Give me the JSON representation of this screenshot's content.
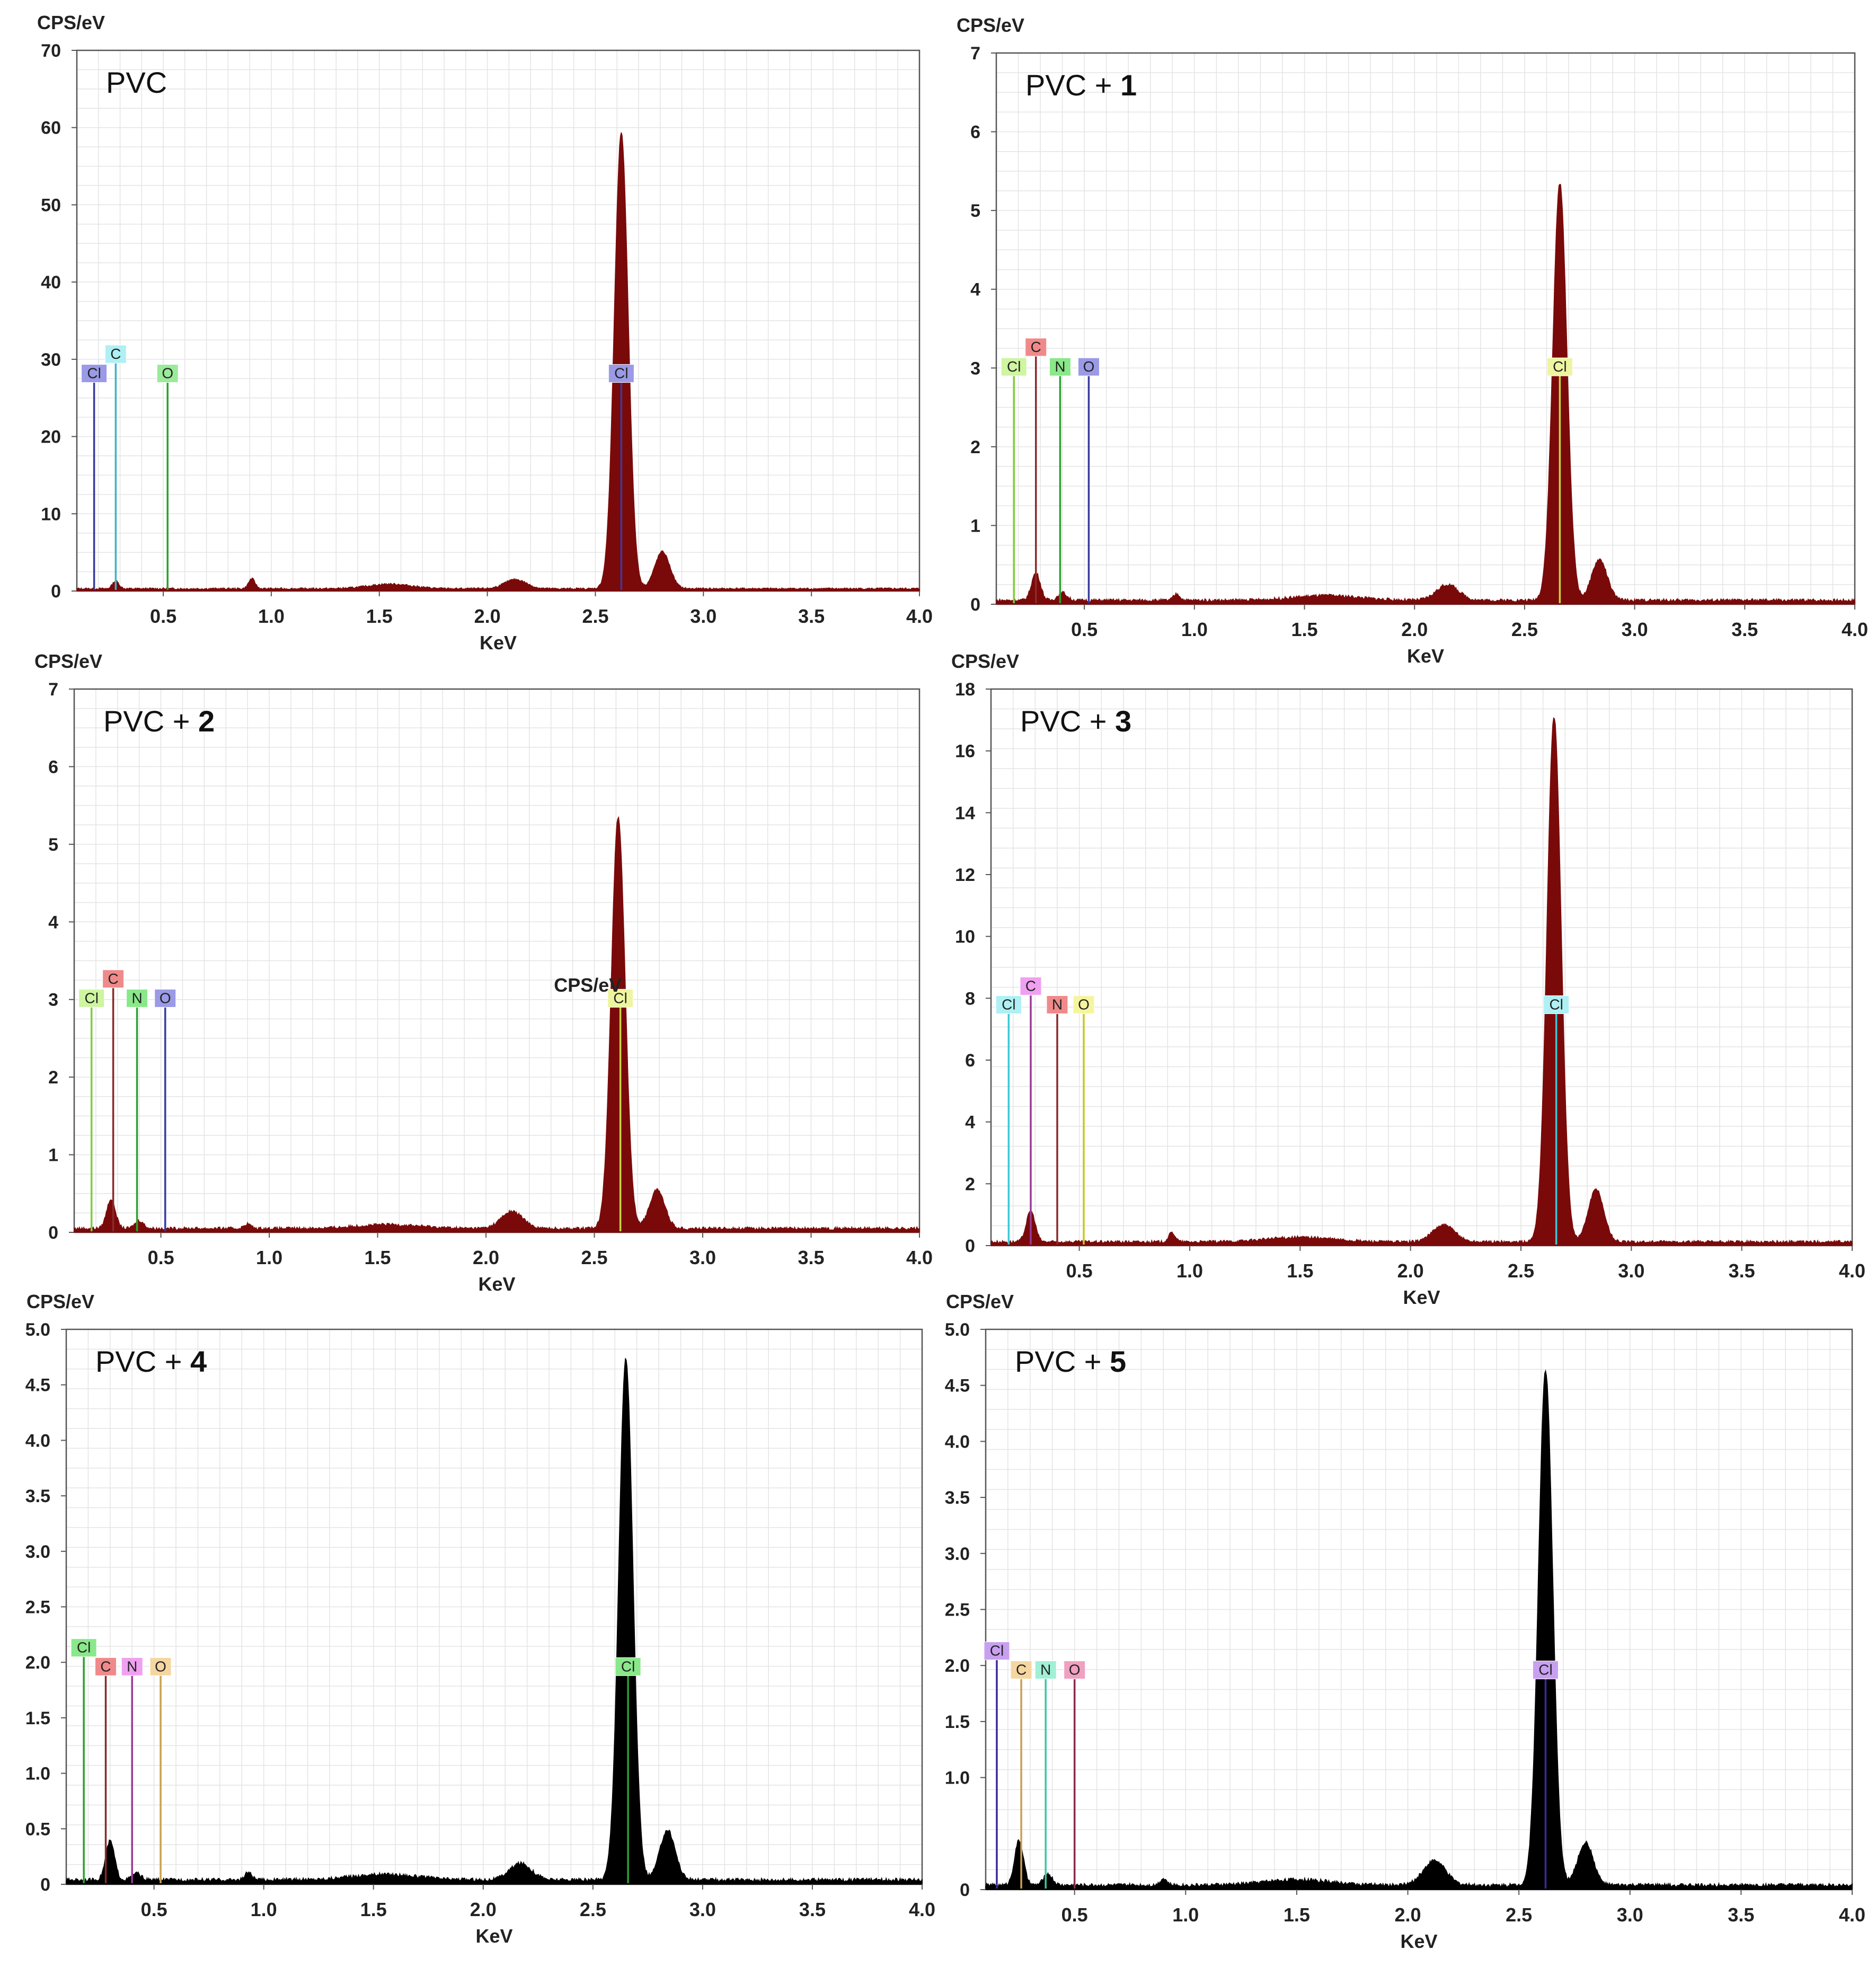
{
  "chart_data": [
    {
      "type": "area",
      "title": "PVC",
      "title_parts": [
        "PVC",
        ""
      ],
      "ylabel": "CPS/eV",
      "xlabel": "KeV",
      "fill_color": "#7a0a0a",
      "xlim": [
        0.1,
        4.0
      ],
      "ylim": [
        0,
        70
      ],
      "yticks": [
        0,
        10,
        20,
        30,
        40,
        50,
        60,
        70
      ],
      "ytick_labels": [
        "0",
        "10",
        "20",
        "30",
        "40",
        "50",
        "60",
        "70"
      ],
      "xticks": [
        0.5,
        1.0,
        1.5,
        2.0,
        2.5,
        3.0,
        3.5,
        4.0
      ],
      "xtick_labels": [
        "0.5",
        "1.0",
        "1.5",
        "2.0",
        "2.5",
        "3.0",
        "3.5",
        "4.0"
      ],
      "grid": true,
      "spectrum": {
        "baseline": 0.3,
        "peaks": [
          [
            0.28,
            1.0,
            0.015
          ],
          [
            0.91,
            1.3,
            0.015
          ],
          [
            1.55,
            0.6,
            0.1
          ],
          [
            2.13,
            1.2,
            0.05
          ],
          [
            2.62,
            59,
            0.032
          ],
          [
            2.81,
            4.8,
            0.035
          ]
        ]
      },
      "markers": [
        {
          "label": "Cl",
          "x": 0.18,
          "y": 27,
          "color": "#3a3aa0",
          "box_color": "#9a9ae6"
        },
        {
          "label": "C",
          "x": 0.28,
          "y": 29.5,
          "color": "#3ab5c8",
          "box_color": "#aef0f4"
        },
        {
          "label": "O",
          "x": 0.52,
          "y": 27,
          "color": "#2ea02e",
          "box_color": "#9aea9a"
        },
        {
          "label": "Cl",
          "x": 2.62,
          "y": 27,
          "color": "#3a3aa0",
          "box_color": "#9a9ae6"
        }
      ]
    },
    {
      "type": "area",
      "title": "PVC + 1",
      "title_parts": [
        "PVC + ",
        "1"
      ],
      "ylabel": "CPS/eV",
      "xlabel": "KeV",
      "fill_color": "#7a0a0a",
      "xlim": [
        0.1,
        4.0
      ],
      "ylim": [
        0,
        7
      ],
      "yticks": [
        0,
        1,
        2,
        3,
        4,
        5,
        6,
        7
      ],
      "ytick_labels": [
        "0",
        "1",
        "2",
        "3",
        "4",
        "5",
        "6",
        "7"
      ],
      "xticks": [
        0.5,
        1.0,
        1.5,
        2.0,
        2.5,
        3.0,
        3.5,
        4.0
      ],
      "xtick_labels": [
        "0.5",
        "1.0",
        "1.5",
        "2.0",
        "2.5",
        "3.0",
        "3.5",
        "4.0"
      ],
      "grid": true,
      "spectrum": {
        "baseline": 0.05,
        "peaks": [
          [
            0.28,
            0.35,
            0.02
          ],
          [
            0.4,
            0.1,
            0.02
          ],
          [
            0.92,
            0.08,
            0.015
          ],
          [
            1.6,
            0.06,
            0.15
          ],
          [
            2.15,
            0.2,
            0.05
          ],
          [
            2.66,
            5.3,
            0.032
          ],
          [
            2.84,
            0.52,
            0.035
          ]
        ]
      },
      "markers": [
        {
          "label": "Cl",
          "x": 0.18,
          "y": 2.9,
          "color": "#7ccf3a",
          "box_color": "#cef5a0"
        },
        {
          "label": "C",
          "x": 0.28,
          "y": 3.15,
          "color": "#8a2a2a",
          "box_color": "#f08a8a"
        },
        {
          "label": "N",
          "x": 0.39,
          "y": 2.9,
          "color": "#2ea02e",
          "box_color": "#8ae88a"
        },
        {
          "label": "O",
          "x": 0.52,
          "y": 2.9,
          "color": "#3a3aa0",
          "box_color": "#9a9ae6"
        },
        {
          "label": "Cl",
          "x": 2.66,
          "y": 2.9,
          "color": "#c8d640",
          "box_color": "#eef5a0"
        }
      ]
    },
    {
      "type": "area",
      "title": "PVC + 2",
      "title_parts": [
        "PVC + ",
        "2"
      ],
      "ylabel": "CPS/eV",
      "xlabel": "KeV",
      "fill_color": "#7a0a0a",
      "xlim": [
        0.1,
        4.0
      ],
      "ylim": [
        0,
        7
      ],
      "yticks": [
        0,
        1,
        2,
        3,
        4,
        5,
        6,
        7
      ],
      "ytick_labels": [
        "0",
        "1",
        "2",
        "3",
        "4",
        "5",
        "6",
        "7"
      ],
      "xticks": [
        0.5,
        1.0,
        1.5,
        2.0,
        2.5,
        3.0,
        3.5,
        4.0
      ],
      "xtick_labels": [
        "0.5",
        "1.0",
        "1.5",
        "2.0",
        "2.5",
        "3.0",
        "3.5",
        "4.0"
      ],
      "grid": true,
      "spectrum": {
        "baseline": 0.05,
        "peaks": [
          [
            0.27,
            0.38,
            0.02
          ],
          [
            0.4,
            0.1,
            0.02
          ],
          [
            0.9,
            0.06,
            0.015
          ],
          [
            1.55,
            0.05,
            0.15
          ],
          [
            2.12,
            0.22,
            0.05
          ],
          [
            2.61,
            5.3,
            0.032
          ],
          [
            2.79,
            0.5,
            0.035
          ]
        ]
      },
      "markers": [
        {
          "label": "Cl",
          "x": 0.18,
          "y": 2.9,
          "color": "#7ccf3a",
          "box_color": "#cef5a0"
        },
        {
          "label": "C",
          "x": 0.28,
          "y": 3.15,
          "color": "#8a2a2a",
          "box_color": "#f08a8a"
        },
        {
          "label": "N",
          "x": 0.39,
          "y": 2.9,
          "color": "#2ea02e",
          "box_color": "#8ae88a"
        },
        {
          "label": "O",
          "x": 0.52,
          "y": 2.9,
          "color": "#3a3aa0",
          "box_color": "#9a9ae6"
        },
        {
          "label": "Cl",
          "x": 2.62,
          "y": 2.9,
          "color": "#c8d640",
          "box_color": "#eef5a0"
        }
      ],
      "annotations": [
        {
          "text": "CPS/eV",
          "x": 2.47,
          "y": 3.1
        }
      ]
    },
    {
      "type": "area",
      "title": "PVC + 3",
      "title_parts": [
        "PVC + ",
        "3"
      ],
      "ylabel": "CPS/eV",
      "xlabel": "KeV",
      "fill_color": "#7a0a0a",
      "xlim": [
        0.1,
        4.0
      ],
      "ylim": [
        0,
        18
      ],
      "yticks": [
        0,
        2,
        4,
        6,
        8,
        10,
        12,
        14,
        16,
        18
      ],
      "ytick_labels": [
        "0",
        "2",
        "4",
        "6",
        "8",
        "10",
        "12",
        "14",
        "16",
        "18"
      ],
      "xticks": [
        0.5,
        1.0,
        1.5,
        2.0,
        2.5,
        3.0,
        3.5,
        4.0
      ],
      "xtick_labels": [
        "0.5",
        "1.0",
        "1.5",
        "2.0",
        "2.5",
        "3.0",
        "3.5",
        "4.0"
      ],
      "grid": true,
      "spectrum": {
        "baseline": 0.12,
        "peaks": [
          [
            0.28,
            1.0,
            0.02
          ],
          [
            0.92,
            0.3,
            0.015
          ],
          [
            1.5,
            0.15,
            0.15
          ],
          [
            2.15,
            0.55,
            0.05
          ],
          [
            2.65,
            17.0,
            0.032
          ],
          [
            2.84,
            1.7,
            0.035
          ]
        ]
      },
      "markers": [
        {
          "label": "Cl",
          "x": 0.18,
          "y": 7.5,
          "color": "#3ac8d6",
          "box_color": "#aef0f4"
        },
        {
          "label": "C",
          "x": 0.28,
          "y": 8.1,
          "color": "#9a3a9a",
          "box_color": "#f0a0f0"
        },
        {
          "label": "N",
          "x": 0.4,
          "y": 7.5,
          "color": "#8a2a2a",
          "box_color": "#f08a8a"
        },
        {
          "label": "O",
          "x": 0.52,
          "y": 7.5,
          "color": "#c8c820",
          "box_color": "#f5f5a0"
        },
        {
          "label": "Cl",
          "x": 2.66,
          "y": 7.5,
          "color": "#3ac8d6",
          "box_color": "#aef0f4"
        }
      ]
    },
    {
      "type": "area",
      "title": "PVC + 4",
      "title_parts": [
        "PVC + ",
        "4"
      ],
      "ylabel": "CPS/eV",
      "xlabel": "KeV",
      "fill_color": "#000000",
      "xlim": [
        0.1,
        4.0
      ],
      "ylim": [
        0,
        5
      ],
      "yticks": [
        0,
        0.5,
        1,
        1.5,
        2,
        2.5,
        3,
        3.5,
        4,
        4.5,
        5
      ],
      "ytick_labels": [
        "0",
        "0.5",
        "1.0",
        "1.5",
        "2.0",
        "2.5",
        "3.0",
        "3.5",
        "4.0",
        "4.5",
        "5.0"
      ],
      "xticks": [
        0.5,
        1.0,
        1.5,
        2.0,
        2.5,
        3.0,
        3.5,
        4.0
      ],
      "xtick_labels": [
        "0.5",
        "1.0",
        "1.5",
        "2.0",
        "2.5",
        "3.0",
        "3.5",
        "4.0"
      ],
      "grid": true,
      "spectrum": {
        "baseline": 0.04,
        "peaks": [
          [
            0.3,
            0.35,
            0.02
          ],
          [
            0.42,
            0.06,
            0.02
          ],
          [
            0.93,
            0.07,
            0.015
          ],
          [
            1.55,
            0.05,
            0.15
          ],
          [
            2.17,
            0.15,
            0.05
          ],
          [
            2.65,
            4.7,
            0.032
          ],
          [
            2.84,
            0.45,
            0.035
          ]
        ]
      },
      "markers": [
        {
          "label": "Cl",
          "x": 0.18,
          "y": 2.05,
          "color": "#2ea02e",
          "box_color": "#8ae88a"
        },
        {
          "label": "C",
          "x": 0.28,
          "y": 1.88,
          "color": "#8a2a2a",
          "box_color": "#f08a8a"
        },
        {
          "label": "N",
          "x": 0.4,
          "y": 1.88,
          "color": "#9a3a9a",
          "box_color": "#f0a0f0"
        },
        {
          "label": "O",
          "x": 0.53,
          "y": 1.88,
          "color": "#c8a050",
          "box_color": "#f5d6a0"
        },
        {
          "label": "Cl",
          "x": 2.66,
          "y": 1.88,
          "color": "#2ea02e",
          "box_color": "#8ae88a"
        }
      ]
    },
    {
      "type": "area",
      "title": "PVC + 5",
      "title_parts": [
        "PVC + ",
        "5"
      ],
      "ylabel": "CPS/eV",
      "xlabel": "KeV",
      "fill_color": "#000000",
      "xlim": [
        0.1,
        4.0
      ],
      "ylim": [
        0,
        5
      ],
      "yticks": [
        0,
        1,
        1.5,
        2,
        2.5,
        3,
        3.5,
        4,
        4.5,
        5
      ],
      "ytick_labels": [
        "0",
        "1.0",
        "1.5",
        "2.0",
        "2.5",
        "3.0",
        "3.5",
        "4.0",
        "4.5",
        "5.0"
      ],
      "xticks": [
        0.5,
        1.0,
        1.5,
        2.0,
        2.5,
        3.0,
        3.5,
        4.0
      ],
      "xtick_labels": [
        "0.5",
        "1.0",
        "1.5",
        "2.0",
        "2.5",
        "3.0",
        "3.5",
        "4.0"
      ],
      "grid": true,
      "spectrum": {
        "baseline": 0.04,
        "peaks": [
          [
            0.25,
            0.4,
            0.02
          ],
          [
            0.38,
            0.1,
            0.02
          ],
          [
            0.9,
            0.06,
            0.015
          ],
          [
            1.5,
            0.05,
            0.15
          ],
          [
            2.12,
            0.22,
            0.05
          ],
          [
            2.62,
            4.6,
            0.032
          ],
          [
            2.8,
            0.38,
            0.035
          ]
        ]
      },
      "markers": [
        {
          "label": "Cl",
          "x": 0.15,
          "y": 2.05,
          "color": "#3a2a9a",
          "box_color": "#c8a0f0"
        },
        {
          "label": "C",
          "x": 0.26,
          "y": 1.88,
          "color": "#c8a050",
          "box_color": "#f5d6a0"
        },
        {
          "label": "N",
          "x": 0.37,
          "y": 1.88,
          "color": "#3ac8a0",
          "box_color": "#a0f0d6"
        },
        {
          "label": "O",
          "x": 0.5,
          "y": 1.88,
          "color": "#8a2a4a",
          "box_color": "#f0a0c0"
        },
        {
          "label": "Cl",
          "x": 2.62,
          "y": 1.88,
          "color": "#3a2a9a",
          "box_color": "#c8a0f0"
        }
      ]
    }
  ]
}
